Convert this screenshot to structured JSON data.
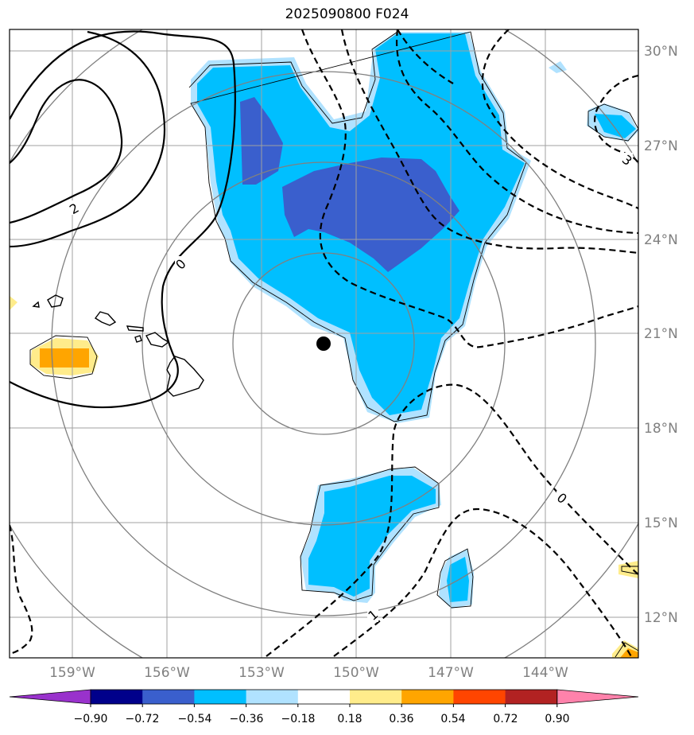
{
  "title": "2025090800 F024",
  "longitude_labels": [
    "159°W",
    "156°W",
    "153°W",
    "150°W",
    "147°W",
    "144°W"
  ],
  "latitude_labels": [
    "30°N",
    "27°N",
    "24°N",
    "21°N",
    "18°N",
    "15°N",
    "12°N"
  ],
  "colorbar": {
    "tick_labels": [
      "−0.90",
      "−0.72",
      "−0.54",
      "−0.36",
      "−0.18",
      "0.18",
      "0.36",
      "0.54",
      "0.72",
      "0.90"
    ],
    "colors": [
      "#9932cc",
      "#00008b",
      "#3a5fcd",
      "#00bfff",
      "#b0e2ff",
      "#ffffff",
      "#ffec8b",
      "#ffa500",
      "#ff4500",
      "#b22222",
      "#ff82ab"
    ]
  },
  "contour_labels": [
    "2",
    "0",
    "3",
    "0",
    "1"
  ],
  "marker": "storm-center-dot",
  "colors": {
    "frame": "#000000",
    "grid": "#a0a0a0",
    "range_rings": "#808080",
    "coast": "#000000"
  }
}
